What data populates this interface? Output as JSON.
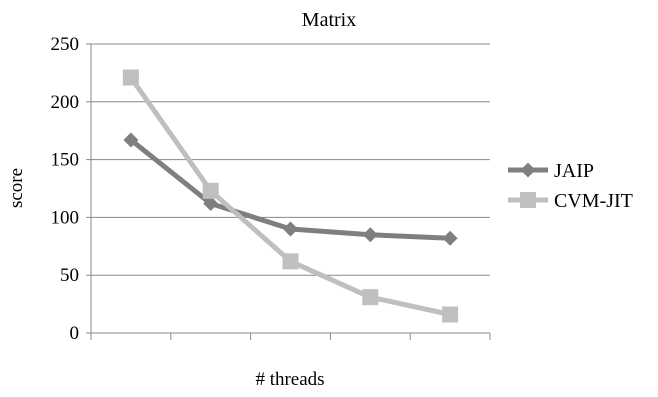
{
  "chart_data": {
    "type": "line",
    "title": "Matrix",
    "xlabel": "# threads",
    "ylabel": "score",
    "categories": [
      "",
      "",
      "",
      "",
      ""
    ],
    "ylim": [
      0,
      250
    ],
    "yticks": [
      0,
      50,
      100,
      150,
      200,
      250
    ],
    "grid": true,
    "legend": "right",
    "series": [
      {
        "name": "JAIP",
        "values": [
          167,
          112,
          90,
          85,
          82
        ],
        "color": "#7f7f7f",
        "marker": "diamond"
      },
      {
        "name": "CVM-JIT",
        "values": [
          221,
          123,
          62,
          31,
          16
        ],
        "color": "#bfbfbf",
        "marker": "square"
      }
    ]
  }
}
